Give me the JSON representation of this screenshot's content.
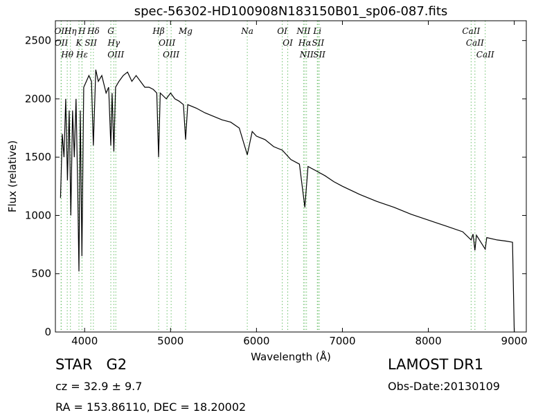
{
  "chart_data": {
    "type": "line",
    "title": "spec-56302-HD100908N183150B01_sp06-087.fits",
    "x_label": "Wavelength (Å)",
    "y_label": "Flux (relative)",
    "xlim": [
      3660,
      9140
    ],
    "ylim": [
      0,
      2670
    ],
    "xticks": [
      4000,
      5000,
      6000,
      7000,
      8000,
      9000
    ],
    "yticks": [
      0,
      500,
      1000,
      1500,
      2000,
      2500
    ],
    "series": [
      {
        "color": "#000000",
        "x": [
          3720,
          3740,
          3760,
          3780,
          3800,
          3820,
          3840,
          3860,
          3880,
          3900,
          3920,
          3934,
          3950,
          3969,
          3990,
          4020,
          4050,
          4080,
          4102,
          4130,
          4160,
          4200,
          4250,
          4280,
          4305,
          4320,
          4340,
          4360,
          4400,
          4450,
          4500,
          4550,
          4600,
          4650,
          4700,
          4750,
          4800,
          4840,
          4861,
          4880,
          4950,
          5000,
          5050,
          5100,
          5150,
          5175,
          5200,
          5300,
          5400,
          5500,
          5600,
          5700,
          5800,
          5893,
          5950,
          6000,
          6100,
          6200,
          6300,
          6400,
          6500,
          6563,
          6600,
          6700,
          6800,
          6900,
          7000,
          7200,
          7400,
          7600,
          7800,
          8000,
          8200,
          8400,
          8498,
          8520,
          8542,
          8560,
          8662,
          8680,
          8800,
          8900,
          8980,
          9000
        ],
        "values": [
          1150,
          1700,
          1500,
          2000,
          1300,
          1900,
          1000,
          1900,
          1500,
          2000,
          1200,
          520,
          1900,
          650,
          2100,
          2150,
          2200,
          2150,
          1600,
          2250,
          2150,
          2200,
          2050,
          2100,
          1600,
          2050,
          1550,
          2100,
          2150,
          2200,
          2230,
          2150,
          2200,
          2150,
          2100,
          2100,
          2080,
          2050,
          1500,
          2050,
          2000,
          2050,
          2000,
          1980,
          1950,
          1650,
          1950,
          1920,
          1880,
          1850,
          1820,
          1800,
          1750,
          1520,
          1720,
          1680,
          1650,
          1590,
          1560,
          1480,
          1440,
          1070,
          1420,
          1380,
          1340,
          1290,
          1250,
          1180,
          1120,
          1070,
          1010,
          960,
          910,
          860,
          790,
          840,
          700,
          830,
          710,
          810,
          790,
          780,
          770,
          0
        ]
      }
    ],
    "spectral_lines": {
      "color": "#6abf69",
      "labels": [
        "OII",
        "OII",
        "Hθ",
        "Hη",
        "K",
        "H",
        "Hε",
        "SII",
        "Hδ",
        "G",
        "Hγ",
        "OIII",
        "Hβ",
        "OIII",
        "OIII",
        "Mg",
        "Na",
        "OI",
        "OI",
        "NII",
        "Hα",
        "NII",
        "Li",
        "SII",
        "SII",
        "CaII",
        "CaII",
        "CaII"
      ],
      "wavelengths": [
        3726,
        3729,
        3798,
        3835,
        3934,
        3969,
        3970,
        4072,
        4102,
        4305,
        4340,
        4363,
        4861,
        4959,
        5007,
        5175,
        5893,
        6300,
        6364,
        6548,
        6563,
        6583,
        6708,
        6716,
        6731,
        8498,
        8542,
        8662
      ]
    },
    "footer": {
      "class": "STAR   G2",
      "redshift": "cz = 32.9 ± 9.7",
      "coords": "RA = 153.86110, DEC = 18.20002",
      "survey": "LAMOST DR1",
      "date": "Obs-Date:20130109"
    }
  }
}
